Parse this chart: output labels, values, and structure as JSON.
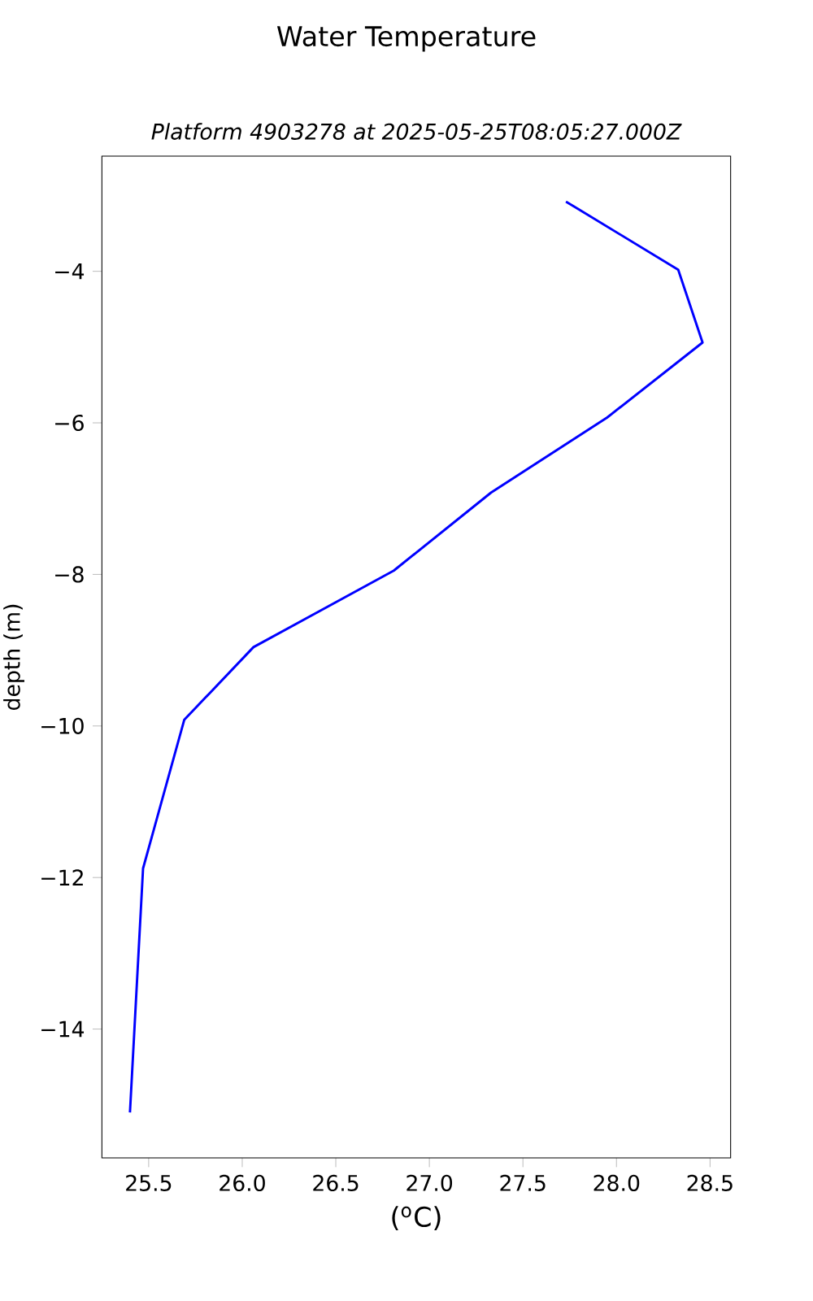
{
  "chart_data": {
    "type": "line",
    "title": "Water Temperature",
    "subtitle": "Platform 4903278 at 2025-05-25T08:05:27.000Z",
    "xlabel": "($^{o}$C)",
    "ylabel": "depth (m)",
    "series": [
      {
        "color": "#0000ff",
        "x": [
          27.73,
          28.33,
          28.46,
          27.95,
          27.33,
          26.81,
          26.06,
          25.69,
          25.47,
          25.4
        ],
        "values": [
          -3.08,
          -3.98,
          -4.94,
          -5.93,
          -6.92,
          -7.95,
          -8.96,
          -9.92,
          -11.88,
          -15.1
        ]
      }
    ],
    "xlim": [
      25.25,
      28.61
    ],
    "ylim": [
      -15.7,
      -2.48
    ],
    "xticks": [
      25.5,
      {
        "value": 26.0,
        "label": "26.0"
      },
      26.5,
      {
        "value": 27.0,
        "label": "27.0"
      },
      27.5,
      {
        "value": 28.0,
        "label": "28.0"
      },
      28.5
    ],
    "yticks": [
      {
        "value": -14,
        "label": "−14"
      },
      {
        "value": -12,
        "label": "−12"
      },
      {
        "value": -10,
        "label": "−10"
      },
      {
        "value": -8,
        "label": "−8"
      },
      {
        "value": -6,
        "label": "−6"
      },
      {
        "value": -4,
        "label": "−4"
      }
    ],
    "grid": false,
    "marker": "none",
    "line_style": "solid"
  }
}
